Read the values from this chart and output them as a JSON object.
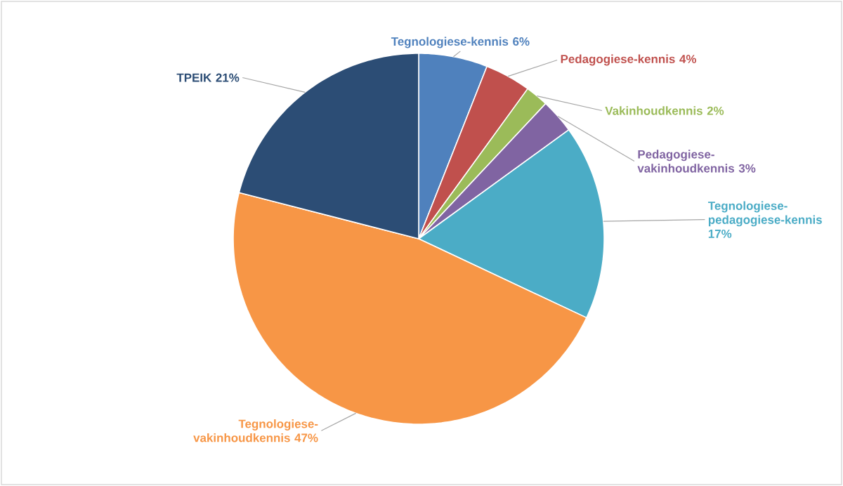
{
  "chart_data": {
    "type": "pie",
    "categories": [
      "Tegnologiese-kennis",
      "Pedagogiese-kennis",
      "Vakinhoudkennis",
      "Pedagogiese-vakinhoudkennis",
      "Tegnologiese-pedagogiese-kennis",
      "Tegnologiese-vakinhoudkennis",
      "TPEIK"
    ],
    "values": [
      6,
      4,
      2,
      3,
      17,
      47,
      21
    ],
    "value_labels": [
      "6%",
      "4%",
      "2%",
      "3%",
      "17%",
      "47%",
      "21%"
    ],
    "colors": [
      "#4f81bd",
      "#c0504d",
      "#9bbb59",
      "#8064a2",
      "#4bacc6",
      "#f79646",
      "#2c4d75"
    ]
  }
}
